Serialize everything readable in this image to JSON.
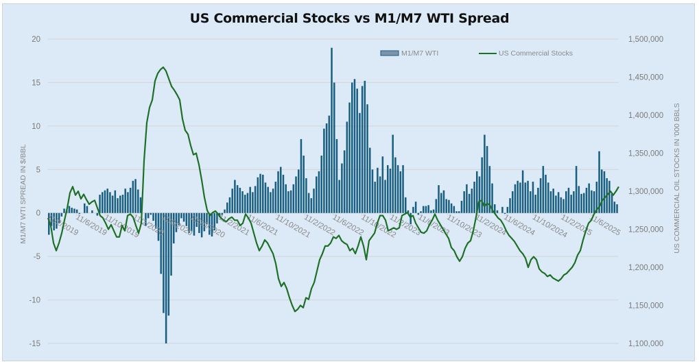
{
  "chart_data": {
    "type": "bar+line",
    "title": "US Commercial Stocks vs M1/M7 WTI Spread",
    "ylabel_left": "M1/M7 WTI SPREAD IN $/BBL",
    "ylabel_right": "US COMMERCIAL OIL STOCKS IN '000 BBLS",
    "ylim_left": [
      -15,
      20
    ],
    "ylim_right": [
      1100000,
      1500000
    ],
    "yticks_left": [
      "20",
      "15",
      "10",
      "5",
      "0",
      "-5",
      "-10",
      "-15"
    ],
    "yticks_left_values": [
      20,
      15,
      10,
      5,
      0,
      -5,
      -10,
      -15
    ],
    "yticks_right": [
      "1,500,000",
      "1,450,000",
      "1,400,000",
      "1,350,000",
      "1,300,000",
      "1,250,000",
      "1,200,000",
      "1,150,000",
      "1,100,000"
    ],
    "yticks_right_values": [
      1500000,
      1450000,
      1400000,
      1350000,
      1300000,
      1250000,
      1200000,
      1150000,
      1100000
    ],
    "xticks": [
      "11/2/2019",
      "11/6/2019",
      "11/10/2019",
      "11/2/2020",
      "11/6/2020",
      "11/10/2020",
      "11/2/2021",
      "11/6/2021",
      "11/10/2021",
      "11/2/2022",
      "11/6/2022",
      "11/10/2022",
      "11/2/2023",
      "11/6/2023",
      "11/10/2023",
      "11/2/2024",
      "11/6/2024",
      "11/10/2024",
      "11/2/2025",
      "11/6/2025"
    ],
    "grid": true,
    "legend_position": "top-right",
    "colors": {
      "bar": "#175e80",
      "line": "#1e7028",
      "grid": "#d4d4d4",
      "background": "#dce9f6"
    },
    "series": [
      {
        "name": "M1/M7 WTI",
        "type": "bar",
        "axis": "left",
        "values": [
          -2.5,
          -1.5,
          -2.0,
          -1.8,
          -1.2,
          -0.4,
          0.5,
          0.4,
          0.8,
          0.6,
          0.5,
          0.4,
          -0.1,
          0.0,
          1.1,
          0.8,
          0.0,
          0.3,
          0.0,
          -0.3,
          2.1,
          2.4,
          2.6,
          2.8,
          2.4,
          2.0,
          2.6,
          1.7,
          2.0,
          2.1,
          2.8,
          2.4,
          2.9,
          3.7,
          3.9,
          2.7,
          1.8,
          0.0,
          -1.5,
          -0.6,
          -0.2,
          -0.9,
          -1.8,
          -3.2,
          -7.0,
          -11.5,
          -15.0,
          -11.8,
          -7.2,
          -3.5,
          -2.2,
          -1.4,
          -0.6,
          -1.0,
          -1.5,
          -2.3,
          -2.1,
          -2.6,
          -1.6,
          -2.3,
          -2.8,
          -2.1,
          -1.3,
          -2.5,
          -2.7,
          -2.0,
          -1.2,
          -0.5,
          -0.2,
          0.4,
          1.2,
          1.8,
          2.8,
          3.8,
          3.2,
          2.9,
          2.5,
          2.1,
          2.3,
          3.0,
          2.4,
          3.1,
          4.1,
          4.5,
          4.4,
          3.5,
          3.0,
          2.4,
          2.8,
          3.6,
          4.8,
          5.3,
          4.4,
          3.3,
          2.5,
          2.6,
          3.3,
          4.2,
          5.0,
          8.5,
          6.6,
          4.0,
          2.3,
          1.7,
          2.8,
          4.2,
          4.8,
          6.6,
          9.7,
          10.3,
          11.2,
          19.0,
          15.0,
          8.5,
          3.8,
          5.7,
          7.2,
          10.5,
          12.7,
          15.0,
          15.4,
          14.3,
          11.5,
          14.6,
          15.2,
          12.5,
          7.5,
          5.0,
          3.6,
          5.2,
          4.2,
          6.5,
          3.8,
          5.5,
          5.1,
          9.0,
          6.4,
          5.5,
          4.8,
          5.5,
          1.8,
          0.3,
          -1.3,
          0.7,
          1.3,
          -0.2,
          0.2,
          0.8,
          0.8,
          0.9,
          0.3,
          0.4,
          1.6,
          3.2,
          2.3,
          2.6,
          1.6,
          1.5,
          1.1,
          0.8,
          0.2,
          0.2,
          1.4,
          2.5,
          3.3,
          2.2,
          2.8,
          3.6,
          4.8,
          4.2,
          6.4,
          9.0,
          7.7,
          5.4,
          3.4,
          1.0,
          0.3,
          0.0,
          0.7,
          -0.1,
          0.7,
          1.7,
          2.5,
          3.3,
          3.7,
          3.5,
          4.9,
          3.5,
          3.7,
          2.5,
          3.6,
          2.1,
          2.9,
          4.0,
          5.4,
          4.4,
          3.5,
          2.5,
          2.8,
          2.0,
          2.4,
          1.8,
          1.6,
          2.5,
          2.9,
          2.1,
          2.5,
          5.4,
          3.1,
          2.2,
          2.3,
          2.9,
          3.4,
          2.6,
          2.5,
          3.6,
          7.1,
          5.0,
          4.8,
          4.0,
          3.7,
          2.2,
          1.3,
          1.0
        ]
      },
      {
        "name": "US Commercial Stocks",
        "type": "line",
        "axis": "right",
        "values": [
          1265000,
          1255000,
          1232000,
          1222000,
          1232000,
          1245000,
          1262000,
          1278000,
          1298000,
          1306000,
          1295000,
          1300000,
          1290000,
          1296000,
          1289000,
          1283000,
          1286000,
          1288000,
          1278000,
          1268000,
          1265000,
          1258000,
          1250000,
          1256000,
          1248000,
          1240000,
          1240000,
          1255000,
          1248000,
          1268000,
          1270000,
          1266000,
          1255000,
          1245000,
          1258000,
          1340000,
          1390000,
          1410000,
          1420000,
          1445000,
          1455000,
          1460000,
          1463000,
          1458000,
          1448000,
          1438000,
          1433000,
          1427000,
          1420000,
          1395000,
          1380000,
          1375000,
          1360000,
          1348000,
          1350000,
          1335000,
          1315000,
          1292000,
          1275000,
          1268000,
          1272000,
          1274000,
          1270000,
          1265000,
          1262000,
          1260000,
          1264000,
          1266000,
          1262000,
          1262000,
          1255000,
          1258000,
          1270000,
          1265000,
          1258000,
          1245000,
          1232000,
          1222000,
          1228000,
          1236000,
          1232000,
          1225000,
          1218000,
          1205000,
          1185000,
          1175000,
          1180000,
          1172000,
          1160000,
          1150000,
          1142000,
          1145000,
          1150000,
          1147000,
          1160000,
          1158000,
          1172000,
          1180000,
          1195000,
          1210000,
          1218000,
          1228000,
          1228000,
          1232000,
          1240000,
          1238000,
          1242000,
          1235000,
          1232000,
          1230000,
          1222000,
          1225000,
          1218000,
          1228000,
          1240000,
          1228000,
          1210000,
          1235000,
          1240000,
          1245000,
          1258000,
          1268000,
          1268000,
          1262000,
          1248000,
          1250000,
          1252000,
          1250000,
          1252000,
          1268000,
          1270000,
          1272000,
          1266000,
          1268000,
          1258000,
          1252000,
          1246000,
          1245000,
          1248000,
          1256000,
          1262000,
          1270000,
          1262000,
          1256000,
          1250000,
          1244000,
          1238000,
          1226000,
          1222000,
          1214000,
          1208000,
          1214000,
          1225000,
          1232000,
          1235000,
          1248000,
          1266000,
          1286000,
          1288000,
          1280000,
          1284000,
          1282000,
          1275000,
          1270000,
          1265000,
          1262000,
          1256000,
          1248000,
          1242000,
          1238000,
          1234000,
          1228000,
          1222000,
          1218000,
          1212000,
          1200000,
          1210000,
          1214000,
          1210000,
          1198000,
          1194000,
          1192000,
          1188000,
          1190000,
          1186000,
          1184000,
          1182000,
          1185000,
          1190000,
          1192000,
          1196000,
          1200000,
          1206000,
          1216000,
          1222000,
          1236000,
          1248000,
          1258000,
          1262000,
          1270000,
          1276000,
          1280000,
          1288000,
          1292000,
          1296000,
          1300000,
          1295000,
          1300000,
          1306000
        ]
      }
    ]
  },
  "legend": {
    "bar_label": "M1/M7 WTI",
    "line_label": "US Commercial Stocks"
  }
}
